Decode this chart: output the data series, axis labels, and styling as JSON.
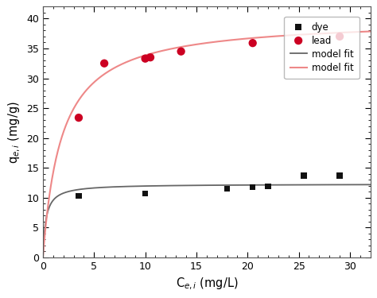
{
  "dye_x": [
    3.5,
    10.0,
    18.0,
    20.5,
    22.0,
    25.5,
    29.0
  ],
  "dye_y": [
    10.3,
    10.7,
    11.5,
    11.8,
    11.9,
    13.7,
    13.7
  ],
  "lead_x": [
    3.5,
    6.0,
    10.0,
    10.5,
    13.5,
    20.5,
    29.0
  ],
  "lead_y": [
    23.4,
    32.5,
    33.3,
    33.5,
    34.5,
    35.9,
    37.0
  ],
  "dye_color": "#111111",
  "lead_color": "#cc0022",
  "dye_fit_color": "#666666",
  "lead_fit_color": "#ee8888",
  "xlabel": "C$_{e,i}$ (mg/L)",
  "ylabel": "q$_{e,i}$ (mg/g)",
  "xlim": [
    0,
    32
  ],
  "ylim": [
    0,
    42
  ],
  "xticks": [
    0,
    5,
    10,
    15,
    20,
    25,
    30
  ],
  "yticks": [
    0,
    5,
    10,
    15,
    20,
    25,
    30,
    35,
    40
  ],
  "dye_qmax": 12.3,
  "dye_K": 3.5,
  "lead_qmax": 40.0,
  "lead_K": 0.55,
  "legend_labels": [
    "dye",
    "lead",
    "model fit",
    "model fit"
  ],
  "background_color": "#ffffff",
  "figsize": [
    4.74,
    3.75
  ],
  "dpi": 100
}
